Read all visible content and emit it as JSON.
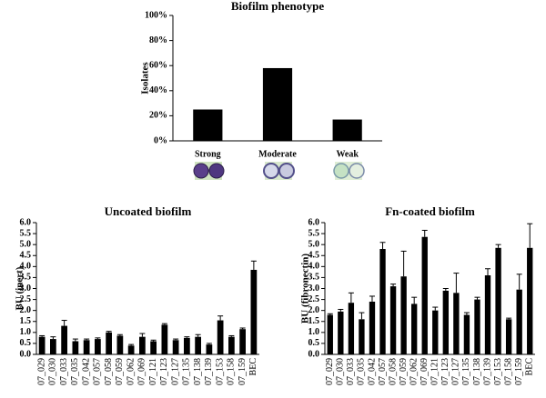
{
  "chart_data": [
    {
      "type": "bar",
      "title": "Biofilm phenotype",
      "y_label": "Isolates",
      "categories": [
        "Strong",
        "Moderate",
        "Weak"
      ],
      "values": [
        25,
        58,
        17
      ],
      "color": "#000000",
      "ylim": [
        0,
        100
      ],
      "yticks": [
        {
          "value": 0,
          "label": "0%"
        },
        {
          "value": 20,
          "label": "20%"
        },
        {
          "value": 40,
          "label": "40%"
        },
        {
          "value": 60,
          "label": "60%"
        },
        {
          "value": 80,
          "label": "80%"
        },
        {
          "value": 100,
          "label": "100%"
        }
      ]
    },
    {
      "type": "bar",
      "title": "Uncoated biofilm",
      "y_label": "BU (inert)",
      "categories": [
        "07_029",
        "07_030",
        "07_033",
        "07_035",
        "07_042",
        "07_057",
        "07_058",
        "07_059",
        "07_062",
        "07_069",
        "07_121",
        "07_123",
        "07_127",
        "07_135",
        "07_138",
        "07_139",
        "07_153",
        "07_158",
        "07_159",
        "BEC"
      ],
      "values": [
        0.8,
        0.7,
        1.3,
        0.6,
        0.65,
        0.7,
        1.0,
        0.85,
        0.4,
        0.8,
        0.6,
        1.35,
        0.65,
        0.75,
        0.8,
        0.45,
        1.55,
        0.8,
        1.15,
        3.85
      ],
      "errors": [
        0.05,
        0.1,
        0.25,
        0.1,
        0.05,
        0.05,
        0.05,
        0.05,
        0.05,
        0.15,
        0.05,
        0.05,
        0.05,
        0.05,
        0.1,
        0.05,
        0.2,
        0.05,
        0.05,
        0.4
      ],
      "color": "#000000",
      "ylim": [
        0,
        6
      ],
      "yticks": [
        {
          "value": 0,
          "label": "0.0"
        },
        {
          "value": 0.5,
          "label": "0.5"
        },
        {
          "value": 1,
          "label": "1.0"
        },
        {
          "value": 1.5,
          "label": "1.5"
        },
        {
          "value": 2,
          "label": "2.0"
        },
        {
          "value": 2.5,
          "label": "2.5"
        },
        {
          "value": 3,
          "label": "3.0"
        },
        {
          "value": 3.5,
          "label": "3.5"
        },
        {
          "value": 4,
          "label": "4.0"
        },
        {
          "value": 4.5,
          "label": "4.5"
        },
        {
          "value": 5,
          "label": "5.0"
        },
        {
          "value": 5.5,
          "label": "5.5"
        },
        {
          "value": 6,
          "label": "6.0"
        }
      ]
    },
    {
      "type": "bar",
      "title": "Fn-coated biofilm",
      "y_label": "BU (fibronectin)",
      "categories": [
        "07_029",
        "07_030",
        "07_033",
        "07_035",
        "07_042",
        "07_057",
        "07_058",
        "07_059",
        "07_062",
        "07_069",
        "07_121",
        "07_123",
        "07_127",
        "07_135",
        "07_138",
        "07_139",
        "07_153",
        "07_158",
        "07_159",
        "BEC"
      ],
      "values": [
        1.8,
        1.95,
        2.35,
        1.6,
        2.4,
        4.8,
        3.1,
        3.55,
        2.3,
        5.35,
        2.0,
        2.9,
        2.8,
        1.8,
        2.5,
        3.6,
        4.85,
        1.6,
        2.95,
        4.85
      ],
      "errors": [
        0.05,
        0.1,
        0.45,
        0.3,
        0.25,
        0.3,
        0.1,
        1.15,
        0.3,
        0.3,
        0.15,
        0.1,
        0.9,
        0.1,
        0.1,
        0.3,
        0.15,
        0.05,
        0.7,
        1.1
      ],
      "color": "#000000",
      "ylim": [
        0,
        6
      ],
      "yticks": [
        {
          "value": 0,
          "label": "0.0"
        },
        {
          "value": 0.5,
          "label": "0.5"
        },
        {
          "value": 1,
          "label": "1.0"
        },
        {
          "value": 1.5,
          "label": "1.5"
        },
        {
          "value": 2,
          "label": "2.0"
        },
        {
          "value": 2.5,
          "label": "2.5"
        },
        {
          "value": 3,
          "label": "3.0"
        },
        {
          "value": 3.5,
          "label": "3.5"
        },
        {
          "value": 4,
          "label": "4.0"
        },
        {
          "value": 4.5,
          "label": "4.5"
        },
        {
          "value": 5,
          "label": "5.0"
        },
        {
          "value": 5.5,
          "label": "5.5"
        },
        {
          "value": 6,
          "label": "6.0"
        }
      ]
    }
  ]
}
